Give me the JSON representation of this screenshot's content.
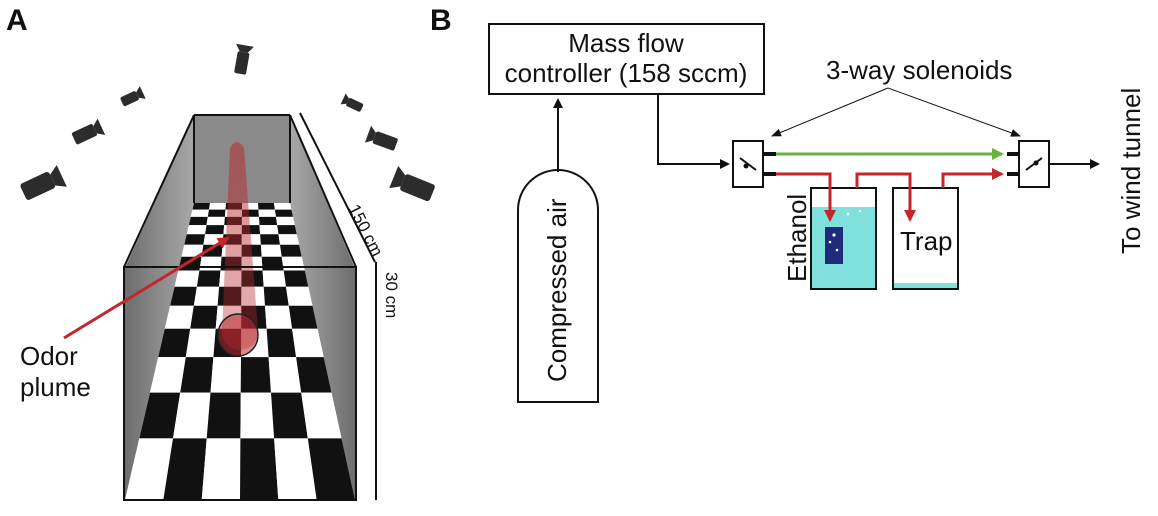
{
  "panel_a": {
    "label": "A",
    "dim_length": "150 cm",
    "dim_height": "30 cm",
    "plume_label": [
      "Odor",
      "plume"
    ]
  },
  "panel_b": {
    "label": "B",
    "mfc_label": [
      "Mass flow",
      "controller (158 sccm)"
    ],
    "source_label": "Compressed air",
    "solenoids_label": "3-way solenoids",
    "ethanol_label": "Ethanol",
    "trap_label": "Trap",
    "outlet_label": "To wind tunnel"
  },
  "colors": {
    "plume": "#b8292f",
    "arrow_red": "#c4262c",
    "arrow_green": "#6ab33c",
    "liquid": "#7fe0dc",
    "insert": "#1f2a7a",
    "wall": "#8a8a8a"
  },
  "icons": [
    "camera-icon"
  ]
}
